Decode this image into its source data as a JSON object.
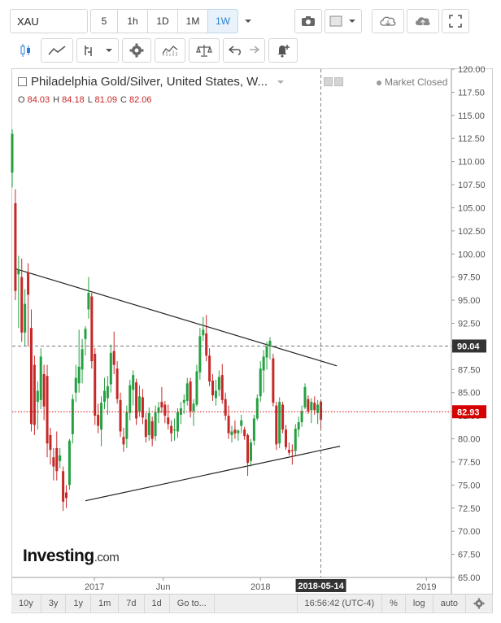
{
  "toolbar": {
    "symbol": "XAU",
    "intervals": [
      {
        "label": "5",
        "active": false
      },
      {
        "label": "1h",
        "active": false
      },
      {
        "label": "1D",
        "active": false
      },
      {
        "label": "1M",
        "active": false
      },
      {
        "label": "1W",
        "active": true
      }
    ],
    "icons": [
      "camera-icon",
      "color-square-icon",
      "cloud-download-icon",
      "cloud-upload-icon",
      "fullscreen-icon"
    ]
  },
  "drawing_toolbar": {
    "icons": [
      "candlestick-icon",
      "line-chart-icon",
      "indicators-icon",
      "dropdown-icon",
      "settings-gear-icon",
      "studies-icon",
      "compare-scale-icon",
      "undo-icon",
      "redo-icon",
      "alert-bell-icon"
    ]
  },
  "legend": {
    "title": "Philadelphia Gold/Silver, United States, W...",
    "ohlc": [
      {
        "key": "O",
        "value": "84.03"
      },
      {
        "key": "H",
        "value": "84.18"
      },
      {
        "key": "L",
        "value": "81.09"
      },
      {
        "key": "C",
        "value": "82.06"
      }
    ],
    "market_status": "Market Closed"
  },
  "watermark": {
    "brand": "Investing",
    "suffix": ".com"
  },
  "price_tags": {
    "crosshair": "90.04",
    "last": "82.93"
  },
  "colors": {
    "up": "#26a042",
    "down": "#c62828",
    "last_price": "#d50000",
    "crosshair_tag": "#333333",
    "trendline": "#222222"
  },
  "chart_data": {
    "type": "candlestick",
    "title": "Philadelphia Gold/Silver, United States, W...",
    "interval": "1W",
    "ylim": [
      65,
      120
    ],
    "y_ticks": [
      "120.00",
      "117.50",
      "115.00",
      "112.50",
      "110.00",
      "107.50",
      "105.00",
      "102.50",
      "100.00",
      "97.50",
      "95.00",
      "92.50",
      "90.00",
      "87.50",
      "85.00",
      "82.50",
      "80.00",
      "77.50",
      "75.00",
      "72.50",
      "70.00",
      "67.50",
      "65.00"
    ],
    "x_ticks": [
      "2017",
      "Jun",
      "2018",
      "2018-05-14",
      "2019"
    ],
    "x_range": [
      "2016-07-04",
      "2019-02-25"
    ],
    "crosshair": {
      "date": "2018-05-14",
      "price": 90.04
    },
    "last_price": 82.93,
    "trendlines": [
      {
        "from": {
          "date": "2016-07-11",
          "price": 98.4
        },
        "to": {
          "date": "2018-06-18",
          "price": 87.9
        }
      },
      {
        "from": {
          "date": "2016-12-12",
          "price": 73.3
        },
        "to": {
          "date": "2018-06-25",
          "price": 79.2
        }
      }
    ],
    "candles": [
      {
        "date": "2016-07-04",
        "o": 108.8,
        "h": 113.5,
        "l": 107.2,
        "c": 113.0
      },
      {
        "date": "2016-07-11",
        "o": 105.5,
        "h": 107.0,
        "l": 95.0,
        "c": 96.0
      },
      {
        "date": "2016-07-18",
        "o": 97.8,
        "h": 99.8,
        "l": 92.0,
        "c": 98.3
      },
      {
        "date": "2016-07-25",
        "o": 97.5,
        "h": 99.5,
        "l": 90.5,
        "c": 91.5
      },
      {
        "date": "2016-08-01",
        "o": 91.5,
        "h": 96.2,
        "l": 90.0,
        "c": 94.6
      },
      {
        "date": "2016-08-08",
        "o": 98.0,
        "h": 99.0,
        "l": 90.0,
        "c": 95.6
      },
      {
        "date": "2016-08-15",
        "o": 92.0,
        "h": 94.0,
        "l": 80.8,
        "c": 81.6
      },
      {
        "date": "2016-08-22",
        "o": 88.0,
        "h": 89.0,
        "l": 80.4,
        "c": 81.5
      },
      {
        "date": "2016-08-29",
        "o": 84.0,
        "h": 86.2,
        "l": 81.0,
        "c": 85.2
      },
      {
        "date": "2016-09-05",
        "o": 84.2,
        "h": 89.8,
        "l": 83.2,
        "c": 88.9
      },
      {
        "date": "2016-09-12",
        "o": 87.0,
        "h": 88.0,
        "l": 82.0,
        "c": 83.5
      },
      {
        "date": "2016-09-19",
        "o": 86.8,
        "h": 88.0,
        "l": 78.0,
        "c": 79.5
      },
      {
        "date": "2016-09-26",
        "o": 80.4,
        "h": 81.2,
        "l": 77.2,
        "c": 78.8
      },
      {
        "date": "2016-10-03",
        "o": 78.0,
        "h": 79.0,
        "l": 75.5,
        "c": 77.0
      },
      {
        "date": "2016-10-10",
        "o": 79.0,
        "h": 80.8,
        "l": 75.5,
        "c": 76.5
      },
      {
        "date": "2016-10-17",
        "o": 77.6,
        "h": 79.0,
        "l": 76.8,
        "c": 78.2
      },
      {
        "date": "2016-10-24",
        "o": 76.5,
        "h": 77.0,
        "l": 72.2,
        "c": 73.2
      },
      {
        "date": "2016-10-31",
        "o": 74.2,
        "h": 75.0,
        "l": 72.5,
        "c": 73.6
      },
      {
        "date": "2016-11-07",
        "o": 75.0,
        "h": 80.0,
        "l": 74.5,
        "c": 79.8
      },
      {
        "date": "2016-11-14",
        "o": 80.5,
        "h": 84.8,
        "l": 79.5,
        "c": 84.3
      },
      {
        "date": "2016-11-21",
        "o": 85.0,
        "h": 88.0,
        "l": 84.0,
        "c": 86.6
      },
      {
        "date": "2016-11-28",
        "o": 86.0,
        "h": 91.8,
        "l": 85.0,
        "c": 87.8
      },
      {
        "date": "2016-12-05",
        "o": 87.5,
        "h": 90.8,
        "l": 86.0,
        "c": 89.7
      },
      {
        "date": "2016-12-12",
        "o": 90.8,
        "h": 92.2,
        "l": 89.0,
        "c": 91.9
      },
      {
        "date": "2016-12-19",
        "o": 94.0,
        "h": 97.5,
        "l": 93.0,
        "c": 95.8
      },
      {
        "date": "2016-12-26",
        "o": 95.4,
        "h": 95.8,
        "l": 87.6,
        "c": 88.4
      },
      {
        "date": "2017-01-02",
        "o": 89.2,
        "h": 89.8,
        "l": 81.5,
        "c": 82.5
      },
      {
        "date": "2017-01-09",
        "o": 82.6,
        "h": 83.8,
        "l": 80.6,
        "c": 81.4
      },
      {
        "date": "2017-01-16",
        "o": 81.0,
        "h": 84.6,
        "l": 79.2,
        "c": 83.9
      },
      {
        "date": "2017-01-23",
        "o": 84.0,
        "h": 86.6,
        "l": 83.2,
        "c": 85.2
      },
      {
        "date": "2017-01-30",
        "o": 84.4,
        "h": 86.8,
        "l": 82.6,
        "c": 85.7
      },
      {
        "date": "2017-02-06",
        "o": 85.9,
        "h": 90.2,
        "l": 85.0,
        "c": 89.3
      },
      {
        "date": "2017-02-13",
        "o": 89.5,
        "h": 91.6,
        "l": 87.0,
        "c": 88.0
      },
      {
        "date": "2017-02-20",
        "o": 87.6,
        "h": 88.4,
        "l": 83.8,
        "c": 84.3
      },
      {
        "date": "2017-02-27",
        "o": 84.2,
        "h": 85.0,
        "l": 80.2,
        "c": 80.8
      },
      {
        "date": "2017-03-06",
        "o": 80.2,
        "h": 81.2,
        "l": 78.6,
        "c": 79.4
      },
      {
        "date": "2017-03-13",
        "o": 80.0,
        "h": 83.6,
        "l": 79.0,
        "c": 82.9
      },
      {
        "date": "2017-03-20",
        "o": 82.8,
        "h": 86.4,
        "l": 82.0,
        "c": 85.8
      },
      {
        "date": "2017-03-27",
        "o": 85.3,
        "h": 87.4,
        "l": 83.6,
        "c": 86.9
      },
      {
        "date": "2017-04-03",
        "o": 86.1,
        "h": 86.5,
        "l": 81.5,
        "c": 82.2
      },
      {
        "date": "2017-04-10",
        "o": 83.0,
        "h": 85.8,
        "l": 82.4,
        "c": 84.6
      },
      {
        "date": "2017-04-17",
        "o": 84.5,
        "h": 85.4,
        "l": 81.6,
        "c": 82.3
      },
      {
        "date": "2017-04-24",
        "o": 82.1,
        "h": 82.8,
        "l": 79.6,
        "c": 80.2
      },
      {
        "date": "2017-05-01",
        "o": 80.4,
        "h": 83.4,
        "l": 79.8,
        "c": 82.8
      },
      {
        "date": "2017-05-08",
        "o": 81.9,
        "h": 82.4,
        "l": 79.2,
        "c": 80.0
      },
      {
        "date": "2017-05-15",
        "o": 80.3,
        "h": 83.6,
        "l": 79.8,
        "c": 82.9
      },
      {
        "date": "2017-05-22",
        "o": 82.8,
        "h": 84.0,
        "l": 81.7,
        "c": 83.4
      },
      {
        "date": "2017-05-29",
        "o": 84.0,
        "h": 85.6,
        "l": 82.8,
        "c": 83.4
      },
      {
        "date": "2017-06-05",
        "o": 83.7,
        "h": 84.1,
        "l": 81.7,
        "c": 82.5
      },
      {
        "date": "2017-06-12",
        "o": 82.3,
        "h": 83.7,
        "l": 81.0,
        "c": 81.6
      },
      {
        "date": "2017-06-19",
        "o": 81.4,
        "h": 82.0,
        "l": 79.7,
        "c": 80.6
      },
      {
        "date": "2017-06-26",
        "o": 80.9,
        "h": 82.2,
        "l": 79.8,
        "c": 81.0
      },
      {
        "date": "2017-07-03",
        "o": 80.8,
        "h": 83.3,
        "l": 80.1,
        "c": 82.9
      },
      {
        "date": "2017-07-10",
        "o": 82.6,
        "h": 84.0,
        "l": 81.6,
        "c": 83.3
      },
      {
        "date": "2017-07-17",
        "o": 83.9,
        "h": 84.8,
        "l": 82.7,
        "c": 84.2
      },
      {
        "date": "2017-07-24",
        "o": 84.1,
        "h": 86.6,
        "l": 83.6,
        "c": 86.0
      },
      {
        "date": "2017-07-31",
        "o": 86.2,
        "h": 86.6,
        "l": 82.3,
        "c": 83.0
      },
      {
        "date": "2017-08-07",
        "o": 83.0,
        "h": 84.3,
        "l": 81.4,
        "c": 83.8
      },
      {
        "date": "2017-08-14",
        "o": 83.7,
        "h": 88.0,
        "l": 83.5,
        "c": 87.3
      },
      {
        "date": "2017-08-21",
        "o": 87.2,
        "h": 92.0,
        "l": 86.4,
        "c": 91.1
      },
      {
        "date": "2017-08-28",
        "o": 91.2,
        "h": 93.2,
        "l": 90.6,
        "c": 91.8
      },
      {
        "date": "2017-09-04",
        "o": 91.4,
        "h": 93.4,
        "l": 88.4,
        "c": 89.0
      },
      {
        "date": "2017-09-11",
        "o": 89.0,
        "h": 89.8,
        "l": 85.7,
        "c": 86.2
      },
      {
        "date": "2017-09-18",
        "o": 86.3,
        "h": 87.0,
        "l": 84.1,
        "c": 84.7
      },
      {
        "date": "2017-09-25",
        "o": 84.4,
        "h": 86.4,
        "l": 83.6,
        "c": 85.2
      },
      {
        "date": "2017-10-02",
        "o": 85.3,
        "h": 87.4,
        "l": 84.6,
        "c": 86.7
      },
      {
        "date": "2017-10-09",
        "o": 86.9,
        "h": 88.1,
        "l": 83.8,
        "c": 84.2
      },
      {
        "date": "2017-10-16",
        "o": 84.3,
        "h": 85.0,
        "l": 82.0,
        "c": 82.5
      },
      {
        "date": "2017-10-23",
        "o": 82.5,
        "h": 83.6,
        "l": 80.0,
        "c": 80.6
      },
      {
        "date": "2017-10-30",
        "o": 80.4,
        "h": 81.4,
        "l": 79.6,
        "c": 80.8
      },
      {
        "date": "2017-11-06",
        "o": 81.0,
        "h": 82.0,
        "l": 80.0,
        "c": 80.6
      },
      {
        "date": "2017-11-13",
        "o": 80.6,
        "h": 81.0,
        "l": 79.8,
        "c": 80.9
      },
      {
        "date": "2017-11-20",
        "o": 81.4,
        "h": 82.6,
        "l": 80.6,
        "c": 82.0
      },
      {
        "date": "2017-11-27",
        "o": 81.0,
        "h": 81.3,
        "l": 79.9,
        "c": 80.3
      },
      {
        "date": "2017-12-04",
        "o": 80.4,
        "h": 80.6,
        "l": 76.0,
        "c": 77.4
      },
      {
        "date": "2017-12-11",
        "o": 77.6,
        "h": 80.0,
        "l": 77.0,
        "c": 79.6
      },
      {
        "date": "2017-12-18",
        "o": 79.8,
        "h": 82.6,
        "l": 79.3,
        "c": 82.2
      },
      {
        "date": "2017-12-25",
        "o": 82.2,
        "h": 84.8,
        "l": 82.0,
        "c": 84.4
      },
      {
        "date": "2018-01-01",
        "o": 84.6,
        "h": 88.4,
        "l": 84.0,
        "c": 87.6
      },
      {
        "date": "2018-01-08",
        "o": 87.4,
        "h": 89.6,
        "l": 85.0,
        "c": 88.9
      },
      {
        "date": "2018-01-15",
        "o": 88.8,
        "h": 90.5,
        "l": 87.5,
        "c": 90.0
      },
      {
        "date": "2018-01-22",
        "o": 90.0,
        "h": 91.0,
        "l": 88.6,
        "c": 90.6
      },
      {
        "date": "2018-01-29",
        "o": 88.7,
        "h": 89.2,
        "l": 83.5,
        "c": 83.9
      },
      {
        "date": "2018-02-05",
        "o": 83.6,
        "h": 84.0,
        "l": 78.8,
        "c": 79.4
      },
      {
        "date": "2018-02-12",
        "o": 79.5,
        "h": 84.5,
        "l": 79.0,
        "c": 84.0
      },
      {
        "date": "2018-02-19",
        "o": 83.7,
        "h": 84.0,
        "l": 80.6,
        "c": 81.0
      },
      {
        "date": "2018-02-26",
        "o": 81.0,
        "h": 81.5,
        "l": 78.8,
        "c": 79.1
      },
      {
        "date": "2018-03-05",
        "o": 78.8,
        "h": 79.6,
        "l": 78.2,
        "c": 78.5
      },
      {
        "date": "2018-03-12",
        "o": 78.8,
        "h": 79.4,
        "l": 77.2,
        "c": 78.7
      },
      {
        "date": "2018-03-19",
        "o": 78.7,
        "h": 81.6,
        "l": 78.2,
        "c": 81.1
      },
      {
        "date": "2018-03-26",
        "o": 81.0,
        "h": 82.4,
        "l": 80.2,
        "c": 81.8
      },
      {
        "date": "2018-04-02",
        "o": 81.8,
        "h": 83.6,
        "l": 81.3,
        "c": 83.0
      },
      {
        "date": "2018-04-09",
        "o": 83.4,
        "h": 86.0,
        "l": 83.2,
        "c": 85.6
      },
      {
        "date": "2018-04-16",
        "o": 84.3,
        "h": 84.7,
        "l": 82.7,
        "c": 83.0
      },
      {
        "date": "2018-04-23",
        "o": 83.1,
        "h": 84.4,
        "l": 81.7,
        "c": 84.0
      },
      {
        "date": "2018-04-30",
        "o": 83.9,
        "h": 84.6,
        "l": 82.6,
        "c": 83.1
      },
      {
        "date": "2018-05-07",
        "o": 82.8,
        "h": 84.2,
        "l": 81.6,
        "c": 83.7
      },
      {
        "date": "2018-05-14",
        "o": 84.03,
        "h": 84.18,
        "l": 81.09,
        "c": 82.06
      }
    ]
  },
  "bottom_bar": {
    "ranges": [
      "10y",
      "3y",
      "1y",
      "1m",
      "7d",
      "1d"
    ],
    "goto": "Go to...",
    "clock": "16:56:42 (UTC-4)",
    "percent": "%",
    "log": "log",
    "auto": "auto"
  }
}
